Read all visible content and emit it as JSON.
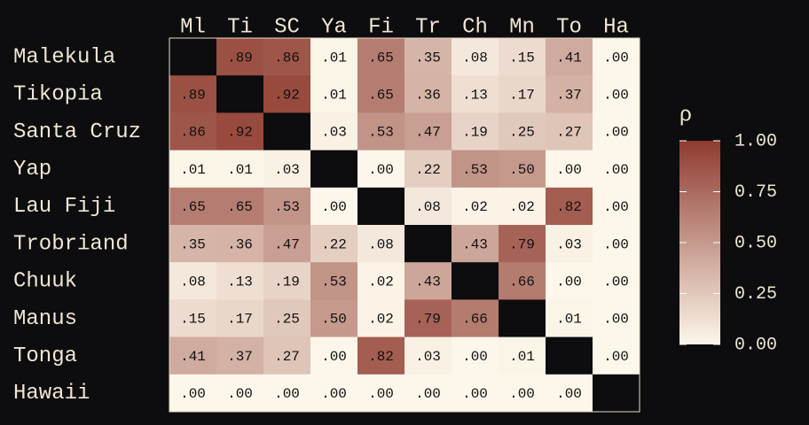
{
  "chart_data": {
    "type": "heatmap",
    "x_categories": [
      "Ml",
      "Ti",
      "SC",
      "Ya",
      "Fi",
      "Tr",
      "Ch",
      "Mn",
      "To",
      "Ha"
    ],
    "y_categories": [
      "Malekula",
      "Tikopia",
      "Santa Cruz",
      "Yap",
      "Lau Fiji",
      "Trobriand",
      "Chuuk",
      "Manus",
      "Tonga",
      "Hawaii"
    ],
    "values": [
      [
        null,
        0.89,
        0.86,
        0.01,
        0.65,
        0.35,
        0.08,
        0.15,
        0.41,
        0.0
      ],
      [
        0.89,
        null,
        0.92,
        0.01,
        0.65,
        0.36,
        0.13,
        0.17,
        0.37,
        0.0
      ],
      [
        0.86,
        0.92,
        null,
        0.03,
        0.53,
        0.47,
        0.19,
        0.25,
        0.27,
        0.0
      ],
      [
        0.01,
        0.01,
        0.03,
        null,
        0.0,
        0.22,
        0.53,
        0.5,
        0.0,
        0.0
      ],
      [
        0.65,
        0.65,
        0.53,
        0.0,
        null,
        0.08,
        0.02,
        0.02,
        0.82,
        0.0
      ],
      [
        0.35,
        0.36,
        0.47,
        0.22,
        0.08,
        null,
        0.43,
        0.79,
        0.03,
        0.0
      ],
      [
        0.08,
        0.13,
        0.19,
        0.53,
        0.02,
        0.43,
        null,
        0.66,
        0.0,
        0.0
      ],
      [
        0.15,
        0.17,
        0.25,
        0.5,
        0.02,
        0.79,
        0.66,
        null,
        0.01,
        0.0
      ],
      [
        0.41,
        0.37,
        0.27,
        0.0,
        0.82,
        0.03,
        0.0,
        0.01,
        null,
        0.0
      ],
      [
        0.0,
        0.0,
        0.0,
        0.0,
        0.0,
        0.0,
        0.0,
        0.0,
        0.0,
        null
      ]
    ],
    "value_labels": [
      [
        null,
        ".89",
        ".86",
        ".01",
        ".65",
        ".35",
        ".08",
        ".15",
        ".41",
        ".00"
      ],
      [
        ".89",
        null,
        ".92",
        ".01",
        ".65",
        ".36",
        ".13",
        ".17",
        ".37",
        ".00"
      ],
      [
        ".86",
        ".92",
        null,
        ".03",
        ".53",
        ".47",
        ".19",
        ".25",
        ".27",
        ".00"
      ],
      [
        ".01",
        ".01",
        ".03",
        null,
        ".00",
        ".22",
        ".53",
        ".50",
        ".00",
        ".00"
      ],
      [
        ".65",
        ".65",
        ".53",
        ".00",
        null,
        ".08",
        ".02",
        ".02",
        ".82",
        ".00"
      ],
      [
        ".35",
        ".36",
        ".47",
        ".22",
        ".08",
        null,
        ".43",
        ".79",
        ".03",
        ".00"
      ],
      [
        ".08",
        ".13",
        ".19",
        ".53",
        ".02",
        ".43",
        null,
        ".66",
        ".00",
        ".00"
      ],
      [
        ".15",
        ".17",
        ".25",
        ".50",
        ".02",
        ".79",
        ".66",
        null,
        ".01",
        ".00"
      ],
      [
        ".41",
        ".37",
        ".27",
        ".00",
        ".82",
        ".03",
        ".00",
        ".01",
        null,
        ".00"
      ],
      [
        ".00",
        ".00",
        ".00",
        ".00",
        ".00",
        ".00",
        ".00",
        ".00",
        ".00",
        null
      ]
    ],
    "cmap": [
      "#fcf7ea",
      "#8f3b30"
    ],
    "null_color": "#0d0c0e",
    "colorbar": {
      "label": "ρ",
      "lim": [
        0,
        1
      ],
      "ticks": [
        {
          "value": 0,
          "label": "0.00"
        },
        {
          "value": 0.25,
          "label": "0.25"
        },
        {
          "value": 0.5,
          "label": "0.50"
        },
        {
          "value": 0.75,
          "label": "0.75"
        },
        {
          "value": 1,
          "label": "1.00"
        }
      ]
    }
  }
}
